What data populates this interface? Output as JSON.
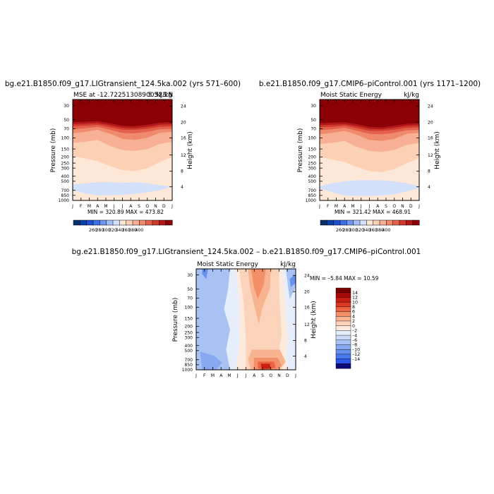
{
  "chart_data": [
    {
      "type": "heatmap",
      "title": "bg.e21.B1850.f09_g17.LIGtransient_124.5ka.002 (yrs 571–600)",
      "subtitle_left": "MSE at -12.72251308900523 N",
      "subtitle_right": "kJ/kg",
      "subtitle_overlap": "5.31.25",
      "ylabel": "Pressure (mb)",
      "ylabel_right": "Height (km)",
      "x_ticks": [
        "J",
        "F",
        "M",
        "A",
        "M",
        "J",
        "J",
        "A",
        "S",
        "O",
        "N",
        "D",
        "J"
      ],
      "y_ticks": [
        "30",
        "50",
        "70",
        "100",
        "150",
        "200",
        "250",
        "300",
        "400",
        "500",
        "700",
        "850",
        "1000"
      ],
      "y_ticks_right": [
        "24",
        "20",
        "16",
        "12",
        "8",
        "4"
      ],
      "stats": "MIN = 320.89  MAX = 473.82",
      "colorbar_ticks": [
        "260",
        "280",
        "300",
        "320",
        "340",
        "360",
        "380",
        "400"
      ]
    },
    {
      "type": "heatmap",
      "title": "b.e21.B1850.f09_g17.CMIP6–piControl.001 (yrs 1171–1200)",
      "subtitle_left": "Moist Static Energy",
      "subtitle_right": "kJ/kg",
      "ylabel": "Pressure (mb)",
      "ylabel_right": "Height (km)",
      "x_ticks": [
        "J",
        "F",
        "M",
        "A",
        "M",
        "J",
        "J",
        "A",
        "S",
        "O",
        "N",
        "D",
        "J"
      ],
      "y_ticks": [
        "30",
        "50",
        "70",
        "100",
        "150",
        "200",
        "250",
        "300",
        "400",
        "500",
        "700",
        "850",
        "1000"
      ],
      "y_ticks_right": [
        "24",
        "20",
        "16",
        "12",
        "8",
        "4"
      ],
      "stats": "MIN = 321.42  MAX = 468.91",
      "colorbar_ticks": [
        "260",
        "280",
        "300",
        "320",
        "340",
        "360",
        "380",
        "400"
      ]
    },
    {
      "type": "heatmap",
      "title": "bg.e21.B1850.f09_g17.LIGtransient_124.5ka.002 – b.e21.B1850.f09_g17.CMIP6–piControl.001",
      "subtitle_left": "Moist Static Energy",
      "subtitle_right": "kJ/kg",
      "ylabel": "Pressure (mb)",
      "ylabel_right": "Height (km)",
      "x_ticks": [
        "J",
        "F",
        "M",
        "A",
        "M",
        "J",
        "J",
        "A",
        "S",
        "O",
        "N",
        "D",
        "J"
      ],
      "y_ticks": [
        "30",
        "50",
        "70",
        "100",
        "150",
        "200",
        "250",
        "300",
        "400",
        "500",
        "700",
        "850",
        "1000"
      ],
      "y_ticks_right": [
        "24",
        "20",
        "16",
        "12",
        "8",
        "4"
      ],
      "stats": "MIN = –5.84  MAX =  10.59",
      "colorbar_ticks": [
        "14",
        "12",
        "10",
        "8",
        "6",
        "4",
        "2",
        "0",
        "–2",
        "–4",
        "–6",
        "–8",
        "–10",
        "–12",
        "–14"
      ]
    }
  ],
  "colors": {
    "mse_scale": [
      "#08306b",
      "#1f4fd0",
      "#3b6fe6",
      "#6f95ef",
      "#a4bdf5",
      "#d2e0fa",
      "#fde8d8",
      "#fbd0b5",
      "#f7b093",
      "#f08a6c",
      "#e5604b",
      "#d03a2c",
      "#b2181b",
      "#8a0005"
    ],
    "diff_scale": [
      "#0a0a7a",
      "#1a2fd0",
      "#2d55e8",
      "#4878ef",
      "#6890ef",
      "#88a8f0",
      "#a8c2f4",
      "#c8daf8",
      "#e6eefc",
      "#fdeadd",
      "#fbd3ba",
      "#f8b490",
      "#f39068",
      "#ea6443",
      "#dc3a25",
      "#c81f12",
      "#a70a06",
      "#7a0000"
    ],
    "diff_cbar": [
      "#7a0000",
      "#a70a06",
      "#c81f12",
      "#dc3a25",
      "#ea6443",
      "#f39068",
      "#f8b490",
      "#fbd3ba",
      "#fdeadd",
      "#e6eefc",
      "#c8daf8",
      "#a8c2f4",
      "#88a8f0",
      "#6890ef",
      "#4878ef",
      "#2d55e8",
      "#0a0a7a"
    ]
  }
}
